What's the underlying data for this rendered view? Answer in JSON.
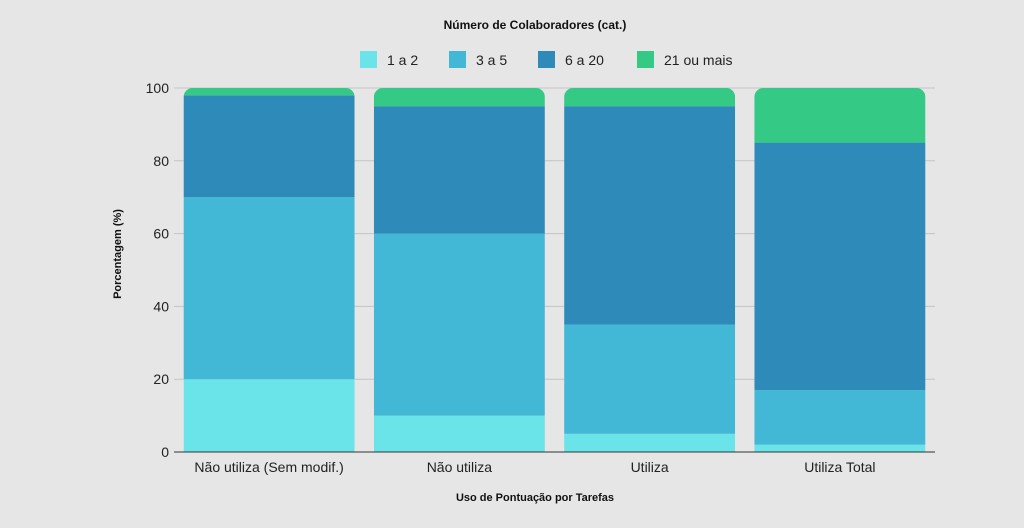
{
  "chart_data": {
    "type": "bar",
    "stacked": true,
    "title": "Número de Colaboradores (cat.)",
    "xlabel": "Uso de Pontuação por Tarefas",
    "ylabel": "Porcentagem (%)",
    "ylim": [
      0,
      100
    ],
    "yticks": [
      "0",
      "20",
      "40",
      "60",
      "80",
      "100"
    ],
    "grid": true,
    "legend_position": "top",
    "categories": [
      "Não utiliza (Sem modif.)",
      "Não utiliza",
      "Utiliza",
      "Utiliza Total"
    ],
    "series": [
      {
        "name": "1 a 2",
        "color": "#6ae4e8",
        "values": [
          20,
          10,
          5,
          2
        ]
      },
      {
        "name": "3 a 5",
        "color": "#42b7d6",
        "values": [
          50,
          50,
          30,
          15
        ]
      },
      {
        "name": "6 a 20",
        "color": "#2e8bb9",
        "values": [
          28,
          35,
          60,
          68
        ]
      },
      {
        "name": "21 ou mais",
        "color": "#34c985",
        "values": [
          2,
          5,
          5,
          15
        ]
      }
    ]
  }
}
